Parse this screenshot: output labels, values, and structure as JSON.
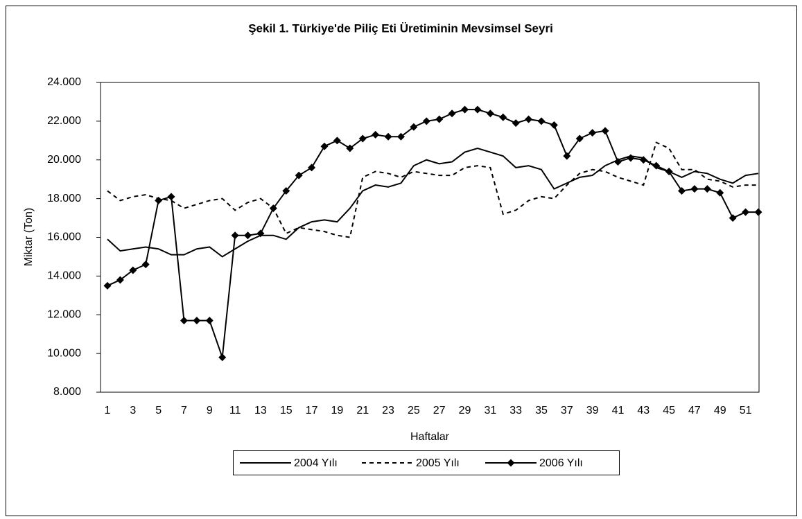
{
  "chart_data": {
    "type": "line",
    "title": "Şekil 1. Türkiye'de Piliç Eti Üretiminin Mevsimsel Seyri",
    "x_label": "Haftalar",
    "y_label": "Miktar (Ton)",
    "categories": [
      1,
      null,
      3,
      null,
      5,
      null,
      7,
      null,
      9,
      null,
      11,
      null,
      13,
      null,
      15,
      null,
      17,
      null,
      19,
      null,
      21,
      null,
      23,
      null,
      25,
      null,
      27,
      null,
      29,
      null,
      31,
      null,
      33,
      null,
      35,
      null,
      37,
      null,
      39,
      null,
      41,
      null,
      43,
      null,
      45,
      null,
      47,
      null,
      49,
      null,
      51,
      null
    ],
    "ylim": [
      8000,
      24000
    ],
    "yticks": [
      {
        "value": 8000,
        "label": "8.000"
      },
      {
        "value": 10000,
        "label": "10.000"
      },
      {
        "value": 12000,
        "label": "12.000"
      },
      {
        "value": 14000,
        "label": "14.000"
      },
      {
        "value": 16000,
        "label": "16.000"
      },
      {
        "value": 18000,
        "label": "18.000"
      },
      {
        "value": 20000,
        "label": "20.000"
      },
      {
        "value": 22000,
        "label": "22.000"
      },
      {
        "value": 24000,
        "label": "24.000"
      }
    ],
    "grid": false,
    "legend": "bottom",
    "series": [
      {
        "name": "2004 Yılı",
        "color": "#000000",
        "style": "solid",
        "marker": "none",
        "values": [
          15900,
          15300,
          15400,
          15500,
          15400,
          15100,
          15100,
          15400,
          15500,
          15000,
          15400,
          15800,
          16100,
          16100,
          15900,
          16500,
          16800,
          16900,
          16800,
          17500,
          18400,
          18700,
          18600,
          18800,
          19700,
          20000,
          19800,
          19900,
          20400,
          20600,
          20400,
          20200,
          19600,
          19700,
          19500,
          18500,
          18800,
          19100,
          19200,
          19700,
          20000,
          20200,
          20100,
          19600,
          19400,
          19100,
          19400,
          19300,
          19000,
          18800,
          19200,
          19300
        ]
      },
      {
        "name": "2005 Yılı",
        "color": "#000000",
        "style": "dashed",
        "marker": "none",
        "values": [
          18400,
          17900,
          18100,
          18200,
          18000,
          17900,
          17500,
          17700,
          17900,
          18000,
          17400,
          17800,
          18000,
          17500,
          16200,
          16500,
          16400,
          16300,
          16100,
          16000,
          19100,
          19400,
          19300,
          19100,
          19400,
          19300,
          19200,
          19200,
          19600,
          19700,
          19600,
          17200,
          17400,
          17900,
          18100,
          18000,
          18700,
          19300,
          19500,
          19400,
          19100,
          18900,
          18700,
          20900,
          20600,
          19500,
          19500,
          19000,
          18900,
          18600,
          18700,
          18700
        ]
      },
      {
        "name": "2006 Yılı",
        "color": "#000000",
        "style": "solid",
        "marker": "diamond",
        "values": [
          13500,
          13800,
          14300,
          14600,
          17900,
          18100,
          11700,
          11700,
          11700,
          9800,
          16100,
          16100,
          16200,
          17500,
          18400,
          19200,
          19600,
          20700,
          21000,
          20600,
          21100,
          21300,
          21200,
          21200,
          21700,
          22000,
          22100,
          22400,
          22600,
          22600,
          22400,
          22200,
          21900,
          22100,
          22000,
          21800,
          20200,
          21100,
          21400,
          21500,
          19900,
          20100,
          20000,
          19700,
          19400,
          18400,
          18500,
          18500,
          18300,
          17000,
          17300,
          17300
        ]
      }
    ]
  }
}
